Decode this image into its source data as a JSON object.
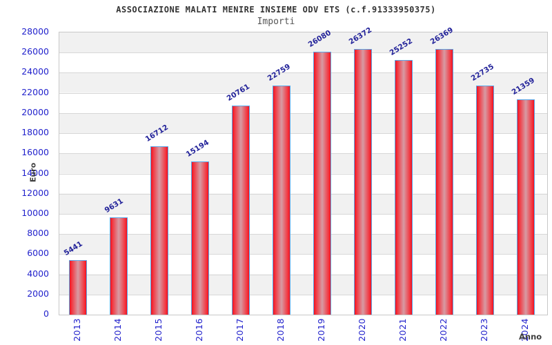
{
  "header": {
    "title": "ASSOCIAZIONE MALATI MENIRE INSIEME ODV ETS (c.f.91333950375)",
    "subtitle": "Importi"
  },
  "chart_data": {
    "type": "bar",
    "title": "ASSOCIAZIONE MALATI MENIRE INSIEME ODV ETS (c.f.91333950375)",
    "subtitle": "Importi",
    "categories": [
      "2013",
      "2014",
      "2015",
      "2016",
      "2017",
      "2018",
      "2019",
      "2020",
      "2021",
      "2022",
      "2023",
      "2024"
    ],
    "values": [
      5441,
      9631,
      16712,
      15194,
      20761,
      22759,
      26080,
      26372,
      25252,
      26369,
      22735,
      21359
    ],
    "xlabel": "Anno",
    "ylabel": "Euro",
    "ylim": [
      0,
      28000
    ],
    "ytick_step": 2000,
    "grid": true,
    "legend": "none",
    "colors": {
      "bar_edge": "#f0101e",
      "bar_center": "#d79ba4",
      "bar_border": "#58a7e8",
      "value_label": "#23239a",
      "tick_label": "#2222cc",
      "axis_label": "#3d3d3d",
      "band_gray": "#f1f1f1",
      "gridline": "#d7d7d7",
      "plot_border": "#c8c8c8"
    }
  }
}
